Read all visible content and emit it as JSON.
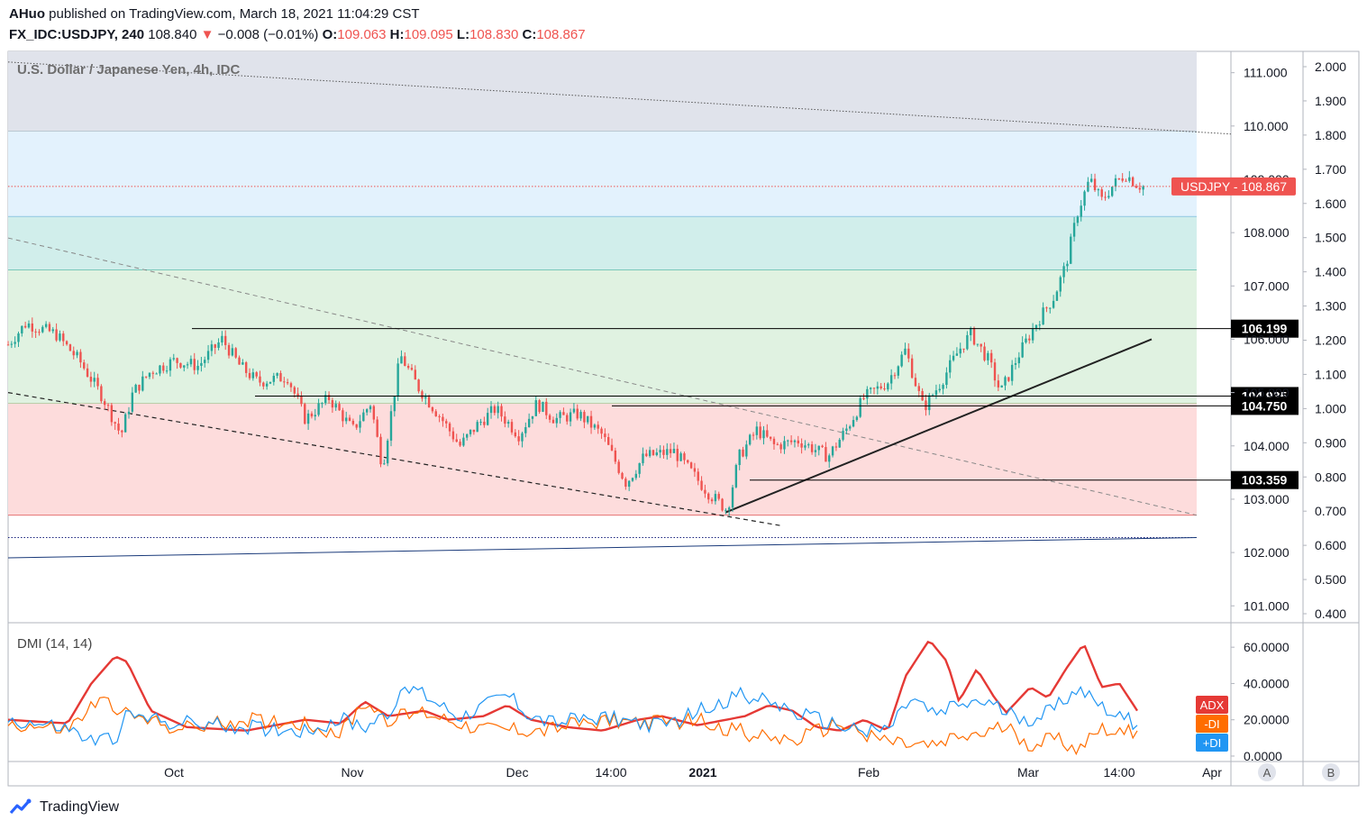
{
  "header": {
    "author": "AHuo",
    "published_text": "published on TradingView.com, March 18, 2021 11:04:29 CST",
    "symbol": "FX_IDC:USDJPY, 240",
    "last": "108.840",
    "change_arrow": "▼",
    "change": "−0.008 (−0.01%)",
    "o_label": "O:",
    "o": "109.063",
    "h_label": "H:",
    "h": "109.095",
    "l_label": "L:",
    "l": "108.830",
    "c_label": "C:",
    "c": "108.867"
  },
  "footer": {
    "brand": "TradingView"
  },
  "chart_data": [
    {
      "type": "candlestick",
      "title": "U.S. Dollar / Japanese Yen, 4h, IDC",
      "x_ticks": [
        "Oct",
        "Nov",
        "Dec",
        "14:00",
        "2021",
        "Feb",
        "Mar",
        "14:00",
        "Apr"
      ],
      "y_ticks": [
        "111.000",
        "110.000",
        "109.000",
        "108.000",
        "107.000",
        "106.000",
        "105.000",
        "104.000",
        "103.000",
        "102.000",
        "101.000"
      ],
      "ylim": [
        100.7,
        111.4
      ],
      "secondary_y_ticks": [
        "2.000",
        "1.900",
        "1.800",
        "1.700",
        "1.600",
        "1.500",
        "1.400",
        "1.300",
        "1.200",
        "1.100",
        "1.000",
        "0.900",
        "0.800",
        "0.700",
        "0.600",
        "0.500",
        "0.400"
      ],
      "last_price_label": "USDJPY",
      "last_price": 108.867,
      "price_path": [
        [
          0,
          105.9
        ],
        [
          0.015,
          106.3
        ],
        [
          0.04,
          106.1
        ],
        [
          0.06,
          105.6
        ],
        [
          0.08,
          104.9
        ],
        [
          0.095,
          104.2
        ],
        [
          0.105,
          105.0
        ],
        [
          0.12,
          105.4
        ],
        [
          0.14,
          105.6
        ],
        [
          0.16,
          105.5
        ],
        [
          0.18,
          106.0
        ],
        [
          0.195,
          105.5
        ],
        [
          0.21,
          105.2
        ],
        [
          0.235,
          105.3
        ],
        [
          0.25,
          104.5
        ],
        [
          0.27,
          104.9
        ],
        [
          0.29,
          104.3
        ],
        [
          0.305,
          104.8
        ],
        [
          0.315,
          103.6
        ],
        [
          0.33,
          105.7
        ],
        [
          0.345,
          105.1
        ],
        [
          0.365,
          104.5
        ],
        [
          0.38,
          104.0
        ],
        [
          0.395,
          104.4
        ],
        [
          0.41,
          104.7
        ],
        [
          0.43,
          104.2
        ],
        [
          0.445,
          104.8
        ],
        [
          0.46,
          104.5
        ],
        [
          0.48,
          104.6
        ],
        [
          0.5,
          104.2
        ],
        [
          0.52,
          103.3
        ],
        [
          0.535,
          103.8
        ],
        [
          0.56,
          103.9
        ],
        [
          0.575,
          103.5
        ],
        [
          0.59,
          103.1
        ],
        [
          0.605,
          102.8
        ],
        [
          0.615,
          103.8
        ],
        [
          0.63,
          104.3
        ],
        [
          0.645,
          104.0
        ],
        [
          0.665,
          104.1
        ],
        [
          0.69,
          103.8
        ],
        [
          0.705,
          104.3
        ],
        [
          0.72,
          104.9
        ],
        [
          0.74,
          105.2
        ],
        [
          0.755,
          105.8
        ],
        [
          0.77,
          104.7
        ],
        [
          0.785,
          105.2
        ],
        [
          0.8,
          105.8
        ],
        [
          0.81,
          106.1
        ],
        [
          0.825,
          105.6
        ],
        [
          0.835,
          105.0
        ],
        [
          0.85,
          105.7
        ],
        [
          0.865,
          106.3
        ],
        [
          0.88,
          106.8
        ],
        [
          0.89,
          107.4
        ],
        [
          0.9,
          108.4
        ],
        [
          0.91,
          109.0
        ],
        [
          0.92,
          108.6
        ],
        [
          0.93,
          108.9
        ],
        [
          0.94,
          109.1
        ],
        [
          0.95,
          108.9
        ],
        [
          0.955,
          108.867
        ]
      ],
      "zones": [
        {
          "from": 109.9,
          "to": 111.4,
          "color": "#e0e3eb"
        },
        {
          "from": 108.3,
          "to": 109.9,
          "color": "#e3f2fd"
        },
        {
          "from": 107.3,
          "to": 108.3,
          "color": "#d1eeeb"
        },
        {
          "from": 104.8,
          "to": 107.3,
          "color": "#e0f2e1"
        },
        {
          "from": 102.7,
          "to": 104.8,
          "color": "#fddcdc"
        }
      ],
      "levels": [
        {
          "value": 106.199,
          "label": "106.199"
        },
        {
          "value": 104.935,
          "label": "104.935"
        },
        {
          "value": 104.75,
          "label": "104.750"
        },
        {
          "value": 103.359,
          "label": "103.359"
        }
      ],
      "colors": {
        "up": "#26a69a",
        "down": "#ef5350",
        "last_label": "#ef5350",
        "level_label": "#000000"
      }
    },
    {
      "type": "line",
      "title": "DMI (14, 14)",
      "y_ticks": [
        "60.0000",
        "40.0000",
        "20.0000",
        "0.0000"
      ],
      "ylim": [
        -3,
        73
      ],
      "series": [
        {
          "name": "ADX",
          "color": "#e53935",
          "values": [
            [
              0,
              20
            ],
            [
              0.05,
              18
            ],
            [
              0.07,
              40
            ],
            [
              0.09,
              55
            ],
            [
              0.1,
              52
            ],
            [
              0.12,
              25
            ],
            [
              0.15,
              16
            ],
            [
              0.2,
              14
            ],
            [
              0.25,
              20
            ],
            [
              0.28,
              18
            ],
            [
              0.3,
              30
            ],
            [
              0.32,
              22
            ],
            [
              0.35,
              25
            ],
            [
              0.37,
              20
            ],
            [
              0.4,
              22
            ],
            [
              0.42,
              28
            ],
            [
              0.44,
              20
            ],
            [
              0.47,
              16
            ],
            [
              0.5,
              14
            ],
            [
              0.53,
              20
            ],
            [
              0.55,
              22
            ],
            [
              0.58,
              17
            ],
            [
              0.62,
              22
            ],
            [
              0.64,
              28
            ],
            [
              0.66,
              25
            ],
            [
              0.68,
              16
            ],
            [
              0.7,
              14
            ],
            [
              0.72,
              20
            ],
            [
              0.74,
              14
            ],
            [
              0.755,
              44
            ],
            [
              0.775,
              64
            ],
            [
              0.79,
              52
            ],
            [
              0.8,
              30
            ],
            [
              0.815,
              48
            ],
            [
              0.83,
              32
            ],
            [
              0.84,
              24
            ],
            [
              0.86,
              38
            ],
            [
              0.875,
              32
            ],
            [
              0.89,
              48
            ],
            [
              0.905,
              62
            ],
            [
              0.92,
              38
            ],
            [
              0.935,
              40
            ],
            [
              0.95,
              25
            ]
          ]
        },
        {
          "name": "-DI",
          "color": "#ff6d00",
          "values": [
            [
              0,
              18
            ],
            [
              0.05,
              14
            ],
            [
              0.075,
              30
            ],
            [
              0.09,
              28
            ],
            [
              0.1,
              22
            ],
            [
              0.15,
              15
            ],
            [
              0.2,
              20
            ],
            [
              0.25,
              18
            ],
            [
              0.28,
              12
            ],
            [
              0.3,
              30
            ],
            [
              0.32,
              20
            ],
            [
              0.35,
              24
            ],
            [
              0.4,
              15
            ],
            [
              0.45,
              14
            ],
            [
              0.5,
              20
            ],
            [
              0.55,
              18
            ],
            [
              0.58,
              20
            ],
            [
              0.6,
              16
            ],
            [
              0.64,
              10
            ],
            [
              0.66,
              8
            ],
            [
              0.7,
              18
            ],
            [
              0.74,
              8
            ],
            [
              0.76,
              6
            ],
            [
              0.78,
              5
            ],
            [
              0.8,
              10
            ],
            [
              0.82,
              12
            ],
            [
              0.84,
              16
            ],
            [
              0.86,
              6
            ],
            [
              0.88,
              10
            ],
            [
              0.9,
              4
            ],
            [
              0.92,
              16
            ],
            [
              0.94,
              12
            ],
            [
              0.95,
              15
            ]
          ]
        },
        {
          "name": "+DI",
          "color": "#2196f3",
          "values": [
            [
              0,
              20
            ],
            [
              0.05,
              15
            ],
            [
              0.07,
              8
            ],
            [
              0.09,
              10
            ],
            [
              0.1,
              22
            ],
            [
              0.15,
              18
            ],
            [
              0.2,
              16
            ],
            [
              0.25,
              14
            ],
            [
              0.28,
              20
            ],
            [
              0.3,
              16
            ],
            [
              0.32,
              25
            ],
            [
              0.34,
              38
            ],
            [
              0.36,
              30
            ],
            [
              0.38,
              22
            ],
            [
              0.4,
              28
            ],
            [
              0.42,
              34
            ],
            [
              0.44,
              22
            ],
            [
              0.46,
              18
            ],
            [
              0.5,
              22
            ],
            [
              0.55,
              16
            ],
            [
              0.6,
              30
            ],
            [
              0.62,
              34
            ],
            [
              0.64,
              30
            ],
            [
              0.66,
              24
            ],
            [
              0.7,
              16
            ],
            [
              0.74,
              14
            ],
            [
              0.76,
              32
            ],
            [
              0.78,
              22
            ],
            [
              0.8,
              28
            ],
            [
              0.82,
              30
            ],
            [
              0.84,
              24
            ],
            [
              0.86,
              20
            ],
            [
              0.88,
              26
            ],
            [
              0.9,
              38
            ],
            [
              0.92,
              28
            ],
            [
              0.94,
              20
            ],
            [
              0.95,
              18
            ]
          ]
        }
      ]
    }
  ],
  "scale_buttons": {
    "a": "A",
    "b": "B"
  }
}
